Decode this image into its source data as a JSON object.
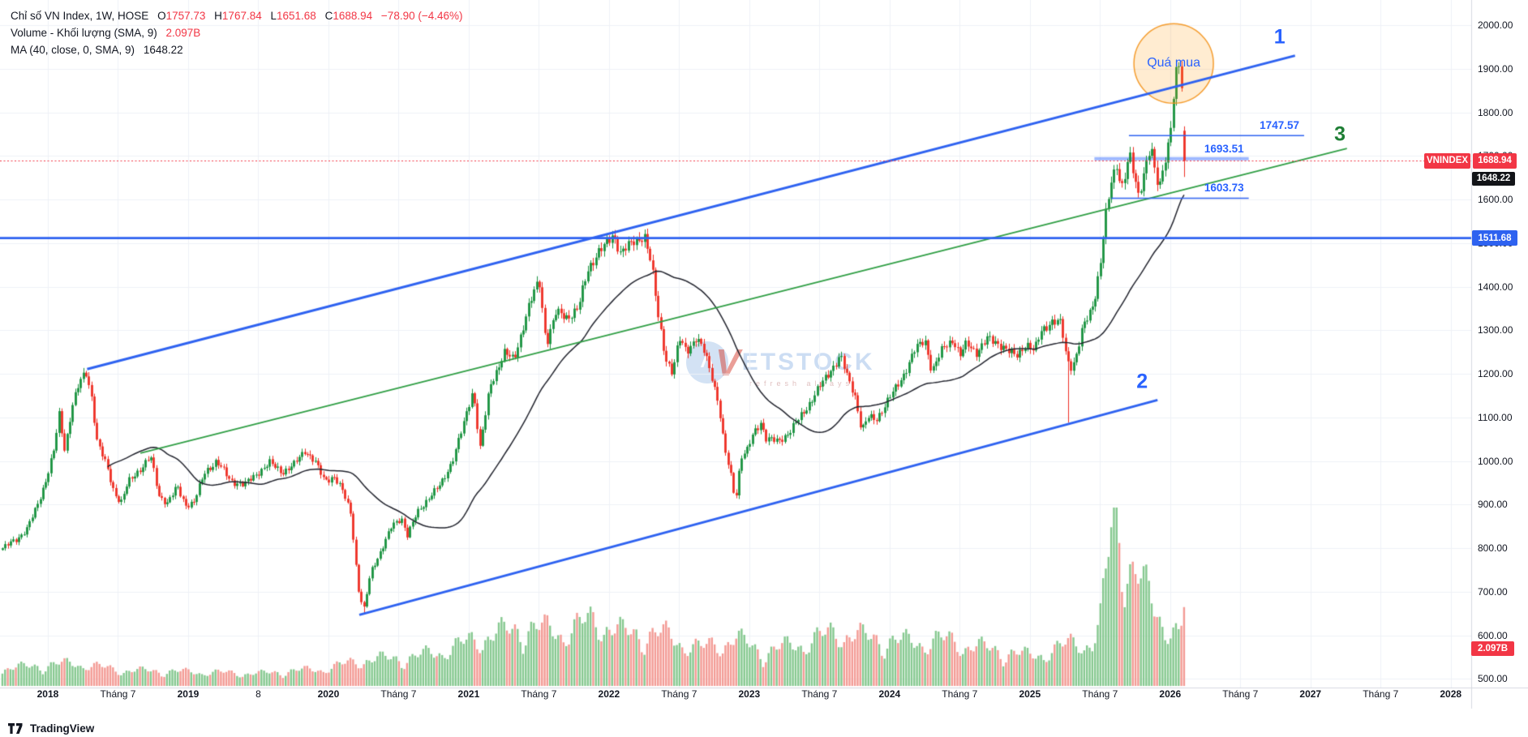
{
  "legend": {
    "title": "Chỉ số VN Index, 1W, HOSE",
    "ohlc": [
      {
        "k": "O",
        "v": "1757.73"
      },
      {
        "k": "H",
        "v": "1767.84"
      },
      {
        "k": "L",
        "v": "1651.68"
      },
      {
        "k": "C",
        "v": "1688.94"
      }
    ],
    "change": "−78.90 (−4.46%)",
    "volume_label": "Volume - Khối lượng (SMA, 9)",
    "volume_value": "2.097B",
    "ma_label": "MA (40, close, 0, SMA, 9)",
    "ma_value": "1648.22"
  },
  "tags": {
    "symbol": "VNINDEX",
    "last": "1688.94",
    "ma": "1648.22",
    "level": "1511.68",
    "volume": "2.097B"
  },
  "watermark": {
    "brand_v": "V",
    "brand": "ETSTOCK",
    "tagline": "refresh always",
    "arrow": "˄"
  },
  "footer": {
    "logo": "TradingView"
  },
  "chart_data": {
    "type": "candlestick",
    "symbol": "VN Index",
    "exchange": "HOSE",
    "timeframe": "1W",
    "grid": true,
    "y_axis": {
      "pane_top_price": 2057.66,
      "pane_bottom_price": 480.34,
      "ticks": [
        2000,
        1900,
        1800,
        1700,
        1600,
        1500,
        1400,
        1300,
        1200,
        1100,
        1000,
        900,
        800,
        700,
        600,
        500
      ]
    },
    "x_axis": {
      "pane_left_t": 2017.659,
      "pane_right_t": 2028.146,
      "ticks": [
        {
          "label": "2018",
          "t": 2018.0,
          "year": true
        },
        {
          "label": "Tháng 7",
          "t": 2018.5,
          "year": false
        },
        {
          "label": "2019",
          "t": 2019.0,
          "year": true
        },
        {
          "label": "8",
          "t": 2019.5,
          "year": false
        },
        {
          "label": "2020",
          "t": 2020.0,
          "year": true
        },
        {
          "label": "Tháng 7",
          "t": 2020.5,
          "year": false
        },
        {
          "label": "2021",
          "t": 2021.0,
          "year": true
        },
        {
          "label": "Tháng 7",
          "t": 2021.5,
          "year": false
        },
        {
          "label": "2022",
          "t": 2022.0,
          "year": true
        },
        {
          "label": "Tháng 7",
          "t": 2022.5,
          "year": false
        },
        {
          "label": "2023",
          "t": 2023.0,
          "year": true
        },
        {
          "label": "Tháng 7",
          "t": 2023.5,
          "year": false
        },
        {
          "label": "2024",
          "t": 2024.0,
          "year": true
        },
        {
          "label": "Tháng 7",
          "t": 2024.5,
          "year": false
        },
        {
          "label": "2025",
          "t": 2025.0,
          "year": true
        },
        {
          "label": "Tháng 7",
          "t": 2025.5,
          "year": false
        },
        {
          "label": "2026",
          "t": 2026.0,
          "year": true
        },
        {
          "label": "Tháng 7",
          "t": 2026.5,
          "year": false
        },
        {
          "label": "2027",
          "t": 2027.0,
          "year": true
        },
        {
          "label": "Tháng 7",
          "t": 2027.5,
          "year": false
        },
        {
          "label": "2028",
          "t": 2028.0,
          "year": true
        }
      ]
    },
    "series_start_t": 2017.676,
    "weeks": 439,
    "price_anchors": [
      [
        2017.68,
        800
      ],
      [
        2017.78,
        822
      ],
      [
        2017.85,
        845
      ],
      [
        2017.92,
        895
      ],
      [
        2017.98,
        952
      ],
      [
        2018.04,
        1020
      ],
      [
        2018.08,
        1105
      ],
      [
        2018.12,
        1025
      ],
      [
        2018.17,
        1125
      ],
      [
        2018.22,
        1175
      ],
      [
        2018.27,
        1204
      ],
      [
        2018.31,
        1150
      ],
      [
        2018.35,
        1045
      ],
      [
        2018.42,
        985
      ],
      [
        2018.47,
        930
      ],
      [
        2018.52,
        905
      ],
      [
        2018.57,
        950
      ],
      [
        2018.65,
        980
      ],
      [
        2018.73,
        1010
      ],
      [
        2018.79,
        920
      ],
      [
        2018.85,
        905
      ],
      [
        2018.92,
        940
      ],
      [
        2018.98,
        900
      ],
      [
        2019.04,
        905
      ],
      [
        2019.12,
        975
      ],
      [
        2019.2,
        1000
      ],
      [
        2019.3,
        955
      ],
      [
        2019.4,
        945
      ],
      [
        2019.5,
        975
      ],
      [
        2019.58,
        995
      ],
      [
        2019.67,
        975
      ],
      [
        2019.75,
        990
      ],
      [
        2019.83,
        1025
      ],
      [
        2019.9,
        1000
      ],
      [
        2019.97,
        955
      ],
      [
        2020.04,
        965
      ],
      [
        2020.1,
        930
      ],
      [
        2020.16,
        880
      ],
      [
        2020.21,
        710
      ],
      [
        2020.25,
        655
      ],
      [
        2020.3,
        745
      ],
      [
        2020.38,
        800
      ],
      [
        2020.45,
        850
      ],
      [
        2020.52,
        870
      ],
      [
        2020.56,
        830
      ],
      [
        2020.63,
        880
      ],
      [
        2020.72,
        920
      ],
      [
        2020.8,
        945
      ],
      [
        2020.88,
        1000
      ],
      [
        2020.96,
        1080
      ],
      [
        2021.03,
        1165
      ],
      [
        2021.08,
        1030
      ],
      [
        2021.15,
        1170
      ],
      [
        2021.25,
        1250
      ],
      [
        2021.32,
        1230
      ],
      [
        2021.42,
        1350
      ],
      [
        2021.5,
        1415
      ],
      [
        2021.55,
        1270
      ],
      [
        2021.62,
        1340
      ],
      [
        2021.7,
        1330
      ],
      [
        2021.78,
        1350
      ],
      [
        2021.85,
        1440
      ],
      [
        2021.92,
        1480
      ],
      [
        2021.98,
        1495
      ],
      [
        2022.03,
        1520
      ],
      [
        2022.08,
        1480
      ],
      [
        2022.15,
        1495
      ],
      [
        2022.25,
        1520
      ],
      [
        2022.3,
        1450
      ],
      [
        2022.35,
        1330
      ],
      [
        2022.4,
        1240
      ],
      [
        2022.45,
        1200
      ],
      [
        2022.5,
        1280
      ],
      [
        2022.55,
        1255
      ],
      [
        2022.62,
        1280
      ],
      [
        2022.68,
        1250
      ],
      [
        2022.73,
        1200
      ],
      [
        2022.78,
        1130
      ],
      [
        2022.82,
        1030
      ],
      [
        2022.87,
        965
      ],
      [
        2022.9,
        910
      ],
      [
        2022.94,
        1010
      ],
      [
        2022.98,
        1020
      ],
      [
        2023.03,
        1065
      ],
      [
        2023.08,
        1090
      ],
      [
        2023.12,
        1050
      ],
      [
        2023.2,
        1045
      ],
      [
        2023.28,
        1065
      ],
      [
        2023.35,
        1095
      ],
      [
        2023.42,
        1130
      ],
      [
        2023.5,
        1170
      ],
      [
        2023.58,
        1210
      ],
      [
        2023.65,
        1240
      ],
      [
        2023.7,
        1190
      ],
      [
        2023.75,
        1155
      ],
      [
        2023.8,
        1070
      ],
      [
        2023.85,
        1100
      ],
      [
        2023.9,
        1095
      ],
      [
        2023.97,
        1130
      ],
      [
        2024.03,
        1160
      ],
      [
        2024.1,
        1200
      ],
      [
        2024.18,
        1255
      ],
      [
        2024.25,
        1280
      ],
      [
        2024.3,
        1205
      ],
      [
        2024.38,
        1260
      ],
      [
        2024.45,
        1280
      ],
      [
        2024.5,
        1240
      ],
      [
        2024.55,
        1270
      ],
      [
        2024.62,
        1250
      ],
      [
        2024.7,
        1280
      ],
      [
        2024.78,
        1270
      ],
      [
        2024.85,
        1250
      ],
      [
        2024.9,
        1240
      ],
      [
        2024.97,
        1270
      ],
      [
        2025.03,
        1250
      ],
      [
        2025.08,
        1300
      ],
      [
        2025.15,
        1320
      ],
      [
        2025.22,
        1315
      ],
      [
        2025.26,
        1235
      ],
      [
        2025.3,
        1215
      ],
      [
        2025.34,
        1255
      ],
      [
        2025.38,
        1310
      ],
      [
        2025.42,
        1335
      ],
      [
        2025.46,
        1375
      ],
      [
        2025.5,
        1450
      ],
      [
        2025.54,
        1560
      ],
      [
        2025.58,
        1640
      ],
      [
        2025.62,
        1685
      ],
      [
        2025.65,
        1625
      ],
      [
        2025.68,
        1660
      ],
      [
        2025.71,
        1700
      ],
      [
        2025.74,
        1655
      ],
      [
        2025.77,
        1610
      ],
      [
        2025.8,
        1645
      ],
      [
        2025.83,
        1690
      ],
      [
        2025.86,
        1720
      ],
      [
        2025.89,
        1660
      ],
      [
        2025.92,
        1620
      ],
      [
        2025.95,
        1680
      ],
      [
        2025.98,
        1720
      ],
      [
        2026.0,
        1760
      ],
      [
        2026.02,
        1830
      ],
      [
        2026.04,
        1885
      ],
      [
        2026.06,
        1905
      ],
      [
        2026.08,
        1855
      ],
      [
        2026.1,
        1880
      ],
      [
        2026.115,
        1688.94
      ]
    ],
    "volume_anchors_billions": [
      [
        2017.7,
        1.0
      ],
      [
        2018.2,
        1.3
      ],
      [
        2018.5,
        0.9
      ],
      [
        2019.0,
        0.8
      ],
      [
        2019.5,
        0.7
      ],
      [
        2020.0,
        1.0
      ],
      [
        2020.25,
        1.5
      ],
      [
        2020.6,
        1.6
      ],
      [
        2020.9,
        2.2
      ],
      [
        2021.1,
        2.8
      ],
      [
        2021.4,
        3.3
      ],
      [
        2021.7,
        3.1
      ],
      [
        2021.9,
        3.8
      ],
      [
        2022.1,
        3.0
      ],
      [
        2022.4,
        2.9
      ],
      [
        2022.65,
        2.1
      ],
      [
        2022.9,
        2.7
      ],
      [
        2023.1,
        1.9
      ],
      [
        2023.4,
        2.5
      ],
      [
        2023.65,
        3.1
      ],
      [
        2023.85,
        2.7
      ],
      [
        2024.1,
        2.5
      ],
      [
        2024.4,
        2.6
      ],
      [
        2024.7,
        2.1
      ],
      [
        2025.0,
        1.7
      ],
      [
        2025.2,
        2.1
      ],
      [
        2025.35,
        2.6
      ],
      [
        2025.45,
        2.3
      ],
      [
        2025.5,
        3.5
      ],
      [
        2025.54,
        6.0
      ],
      [
        2025.58,
        9.0
      ],
      [
        2025.62,
        9.8
      ],
      [
        2025.66,
        8.0
      ],
      [
        2025.72,
        6.5
      ],
      [
        2025.78,
        6.0
      ],
      [
        2025.84,
        5.2
      ],
      [
        2025.9,
        4.4
      ],
      [
        2025.96,
        3.6
      ],
      [
        2026.02,
        3.2
      ],
      [
        2026.07,
        2.6
      ],
      [
        2026.115,
        5.5
      ]
    ],
    "special_candles": [
      {
        "t": 2020.253,
        "low": 648
      },
      {
        "t": 2025.272,
        "low": 1088
      },
      {
        "t": 2026.06,
        "high": 1915
      },
      {
        "t": 2026.099,
        "open": 1757.73,
        "high": 1767.84,
        "low": 1651.68,
        "close": 1688.94
      }
    ],
    "ma": {
      "period": 40,
      "source": "close",
      "last": 1648.22
    },
    "volume_sma": {
      "period": 9,
      "last_label": "2.097B",
      "value_b": 2.097
    },
    "levels": [
      {
        "price": 1747.57,
        "label": "1747.57",
        "t1": 2025.706,
        "t2": 2026.955,
        "style": "thin"
      },
      {
        "price": 1693.51,
        "label": "1693.51",
        "t1": 2025.46,
        "t2": 2026.56,
        "style": "thick"
      },
      {
        "price": 1603.73,
        "label": "1603.73",
        "t1": 2025.58,
        "t2": 2026.56,
        "style": "thin"
      }
    ],
    "hline": {
      "price": 1511.68,
      "label": "1511.68"
    },
    "current_price_line": {
      "price": 1688.94,
      "style": "dotted-red"
    },
    "trendlines": [
      {
        "label": "1",
        "color": "blue",
        "t1": 2018.28,
        "p1": 1211,
        "t2": 2026.89,
        "p2": 1930,
        "label_t": 2026.78,
        "label_p": 1972
      },
      {
        "label": "2",
        "color": "blue",
        "t1": 2020.22,
        "p1": 647,
        "t2": 2025.91,
        "p2": 1140,
        "label_t": 2025.8,
        "label_p": 1182
      },
      {
        "label": "3",
        "color": "green",
        "t1": 2018.66,
        "p1": 1018,
        "t2": 2027.26,
        "p2": 1717,
        "label_t": 2027.21,
        "label_p": 1748
      }
    ],
    "circle": {
      "label": "Quá mua",
      "t": 2026.025,
      "price": 1912,
      "radius_px": 49
    },
    "colors": {
      "up": "#18923e",
      "down": "#ee2f24",
      "vol_up": "#85c88f",
      "vol_down": "#f39a94",
      "ma_line": "#22242e",
      "blue": "#2e62f0",
      "green_line": "#2f9e44",
      "red": "#f23645",
      "tag_black": "#121418",
      "grid": "#eef1f7",
      "axis_border": "#d6d9e0"
    }
  }
}
